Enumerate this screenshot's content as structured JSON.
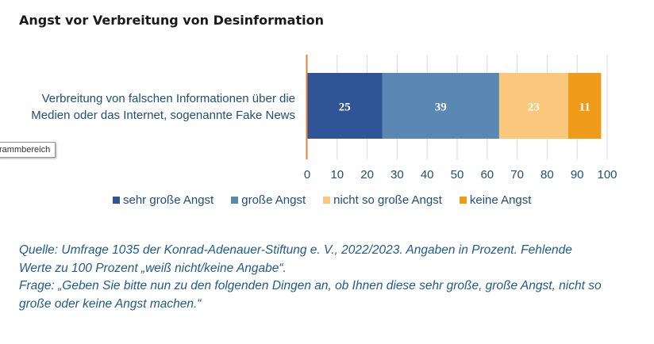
{
  "title": "Angst vor Verbreitung von Desinformation",
  "tooltip": "rammbereich",
  "chart_data": {
    "type": "bar",
    "orientation": "horizontal",
    "stacked": true,
    "categories": [
      "Verbreitung von falschen Informationen über die Medien oder das Internet, sogenannte Fake News"
    ],
    "category_lines": [
      "Verbreitung von falschen Informationen über die",
      "Medien oder das Internet, sogenannte Fake News"
    ],
    "series": [
      {
        "name": "sehr große Angst",
        "values": [
          25
        ],
        "color": "#2f5597"
      },
      {
        "name": "große Angst",
        "values": [
          39
        ],
        "color": "#5b87b3"
      },
      {
        "name": "nicht so große Angst",
        "values": [
          23
        ],
        "color": "#f9c87c"
      },
      {
        "name": "keine Angst",
        "values": [
          11
        ],
        "color": "#f09c1b"
      }
    ],
    "xlim": [
      0,
      100
    ],
    "xticks": [
      "0",
      "10",
      "20",
      "30",
      "40",
      "50",
      "60",
      "70",
      "80",
      "90",
      "100"
    ],
    "grid": true,
    "legend_position": "bottom",
    "axis_color": "#ed7d31",
    "grid_color": "#d9d9d9",
    "label_color": "#ffffff"
  },
  "source": {
    "line1": "Quelle: Umfrage 1035 der Konrad-Adenauer-Stiftung e. V., 2022/2023. Angaben in Prozent. Fehlende",
    "line2": "Werte zu 100 Prozent „weiß nicht/keine Angabe“.",
    "line3": "Frage: „Geben Sie bitte nun zu den folgenden Dingen an, ob Ihnen diese sehr große, große Angst, nicht so",
    "line4": "große oder keine Angst machen.“"
  }
}
